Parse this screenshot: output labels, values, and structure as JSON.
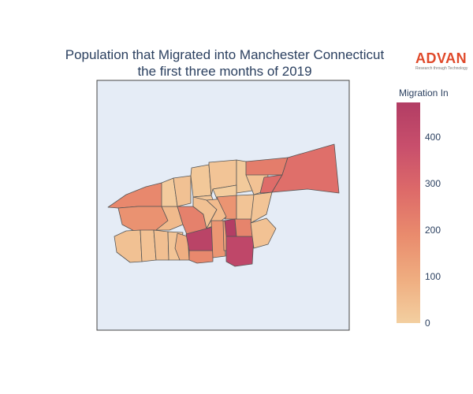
{
  "title": {
    "line1": "Population that Migrated into Manchester Connecticut",
    "line2": "the first three months of 2019"
  },
  "logo": {
    "name": "ADVAN",
    "tagline": "Research through Technology"
  },
  "colorbar": {
    "title": "Migration In",
    "min": 0,
    "max": 475,
    "ticks": [
      "0",
      "100",
      "200",
      "300",
      "400"
    ],
    "colorscale": [
      "#f3cfa0",
      "#efad80",
      "#e98b6d",
      "#dd6a69",
      "#c84f6c",
      "#b23d64"
    ]
  },
  "map": {
    "background": "#e5ecf6",
    "border_color": "#555555",
    "regions": [
      {
        "id": "west-upper-left",
        "value": 200
      },
      {
        "id": "west-lower-left",
        "value": 170
      },
      {
        "id": "west-center",
        "value": 60
      },
      {
        "id": "west-strip",
        "value": 10
      },
      {
        "id": "nw-block-a",
        "value": 40
      },
      {
        "id": "nw-block-b",
        "value": 20
      },
      {
        "id": "n-center-a",
        "value": 30
      },
      {
        "id": "n-center-b",
        "value": 15
      },
      {
        "id": "n-center-c",
        "value": 25
      },
      {
        "id": "n-center-d",
        "value": 5
      },
      {
        "id": "ne-inner",
        "value": 35
      },
      {
        "id": "ne-mid",
        "value": 230
      },
      {
        "id": "ne-small",
        "value": 280
      },
      {
        "id": "far-east",
        "value": 270
      },
      {
        "id": "east-spike",
        "value": 30
      },
      {
        "id": "c-west-a",
        "value": 220
      },
      {
        "id": "c-west-b",
        "value": 40
      },
      {
        "id": "c-mid-a",
        "value": 55
      },
      {
        "id": "c-mid-b",
        "value": 165
      },
      {
        "id": "c-east-a",
        "value": 30
      },
      {
        "id": "c-east-b",
        "value": 45
      },
      {
        "id": "sw-a",
        "value": 40
      },
      {
        "id": "sw-b",
        "value": 35
      },
      {
        "id": "sw-c",
        "value": 45
      },
      {
        "id": "sw-d",
        "value": 30
      },
      {
        "id": "sw-e",
        "value": 90
      },
      {
        "id": "s-center-a",
        "value": 200
      },
      {
        "id": "s-center-b",
        "value": 440
      },
      {
        "id": "s-center-c",
        "value": 160
      },
      {
        "id": "s-center-d",
        "value": 130
      },
      {
        "id": "s-center-e",
        "value": 470
      },
      {
        "id": "s-center-f",
        "value": 420
      },
      {
        "id": "s-east-a",
        "value": 210
      },
      {
        "id": "s-east-b",
        "value": 35
      }
    ]
  }
}
